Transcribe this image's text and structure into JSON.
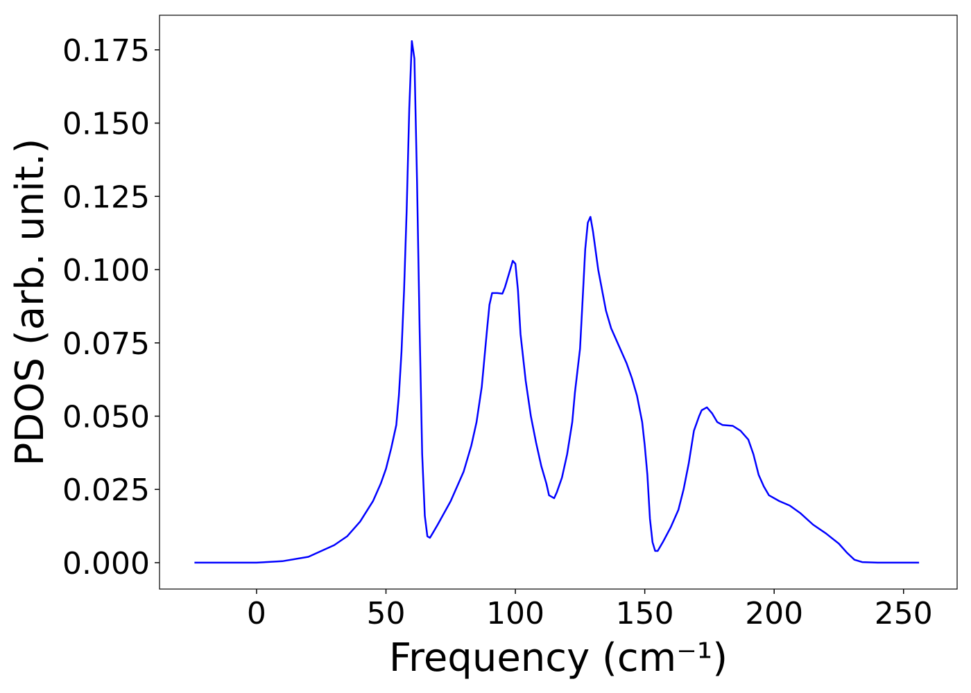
{
  "chart_data": {
    "type": "line",
    "xlabel": "Frequency (cm⁻¹)",
    "ylabel": "PDOS (arb. unit.)",
    "xlim": [
      -37.5,
      270.7
    ],
    "ylim": [
      -0.009,
      0.1868
    ],
    "xticks": [
      0,
      50,
      100,
      150,
      200,
      250
    ],
    "yticks": [
      {
        "value": 0,
        "label": "0.000"
      },
      {
        "value": 0.025,
        "label": "0.025"
      },
      {
        "value": 0.05,
        "label": "0.050"
      },
      {
        "value": 0.075,
        "label": "0.075"
      },
      {
        "value": 0.1,
        "label": "0.100"
      },
      {
        "value": 0.125,
        "label": "0.125"
      },
      {
        "value": 0.15,
        "label": "0.150"
      },
      {
        "value": 0.175,
        "label": "0.175"
      }
    ],
    "x": [
      -24,
      0,
      10,
      20,
      30,
      35,
      40,
      45,
      48,
      50,
      52,
      54,
      55,
      56,
      57,
      58,
      59,
      60,
      61,
      62,
      63,
      64,
      65,
      66,
      67,
      68,
      70,
      75,
      80,
      83,
      85,
      87,
      89,
      90,
      91,
      93,
      95,
      96,
      98,
      99,
      100,
      101,
      102,
      104,
      106,
      108,
      110,
      112,
      113,
      115,
      116,
      118,
      120,
      122,
      123,
      125,
      126,
      127,
      128,
      129,
      130,
      132,
      135,
      137,
      140,
      143,
      145,
      147,
      149,
      150,
      151,
      152,
      153,
      154,
      155,
      157,
      160,
      163,
      165,
      167,
      169,
      171,
      172,
      174,
      176,
      178,
      180,
      184,
      187,
      190,
      192,
      194,
      196,
      198,
      202,
      206,
      210,
      215,
      220,
      225,
      228,
      231,
      234,
      240,
      256
    ],
    "series": [
      {
        "name": "PDOS",
        "color": "#0000ff",
        "values": [
          0,
          0,
          0.0005,
          0.002,
          0.006,
          0.009,
          0.014,
          0.021,
          0.027,
          0.032,
          0.039,
          0.047,
          0.057,
          0.072,
          0.093,
          0.12,
          0.155,
          0.178,
          0.172,
          0.13,
          0.08,
          0.037,
          0.016,
          0.009,
          0.0085,
          0.01,
          0.013,
          0.021,
          0.031,
          0.04,
          0.048,
          0.06,
          0.079,
          0.088,
          0.092,
          0.092,
          0.0918,
          0.094,
          0.1,
          0.103,
          0.102,
          0.093,
          0.078,
          0.062,
          0.05,
          0.041,
          0.033,
          0.027,
          0.023,
          0.022,
          0.024,
          0.029,
          0.037,
          0.048,
          0.058,
          0.073,
          0.09,
          0.107,
          0.116,
          0.118,
          0.113,
          0.1,
          0.086,
          0.08,
          0.074,
          0.068,
          0.063,
          0.057,
          0.048,
          0.04,
          0.03,
          0.015,
          0.007,
          0.004,
          0.004,
          0.007,
          0.012,
          0.018,
          0.025,
          0.034,
          0.045,
          0.05,
          0.052,
          0.053,
          0.051,
          0.048,
          0.047,
          0.0467,
          0.045,
          0.042,
          0.037,
          0.03,
          0.026,
          0.023,
          0.021,
          0.0195,
          0.017,
          0.013,
          0.01,
          0.0065,
          0.0035,
          0.001,
          0.0002,
          0,
          0
        ]
      }
    ]
  }
}
